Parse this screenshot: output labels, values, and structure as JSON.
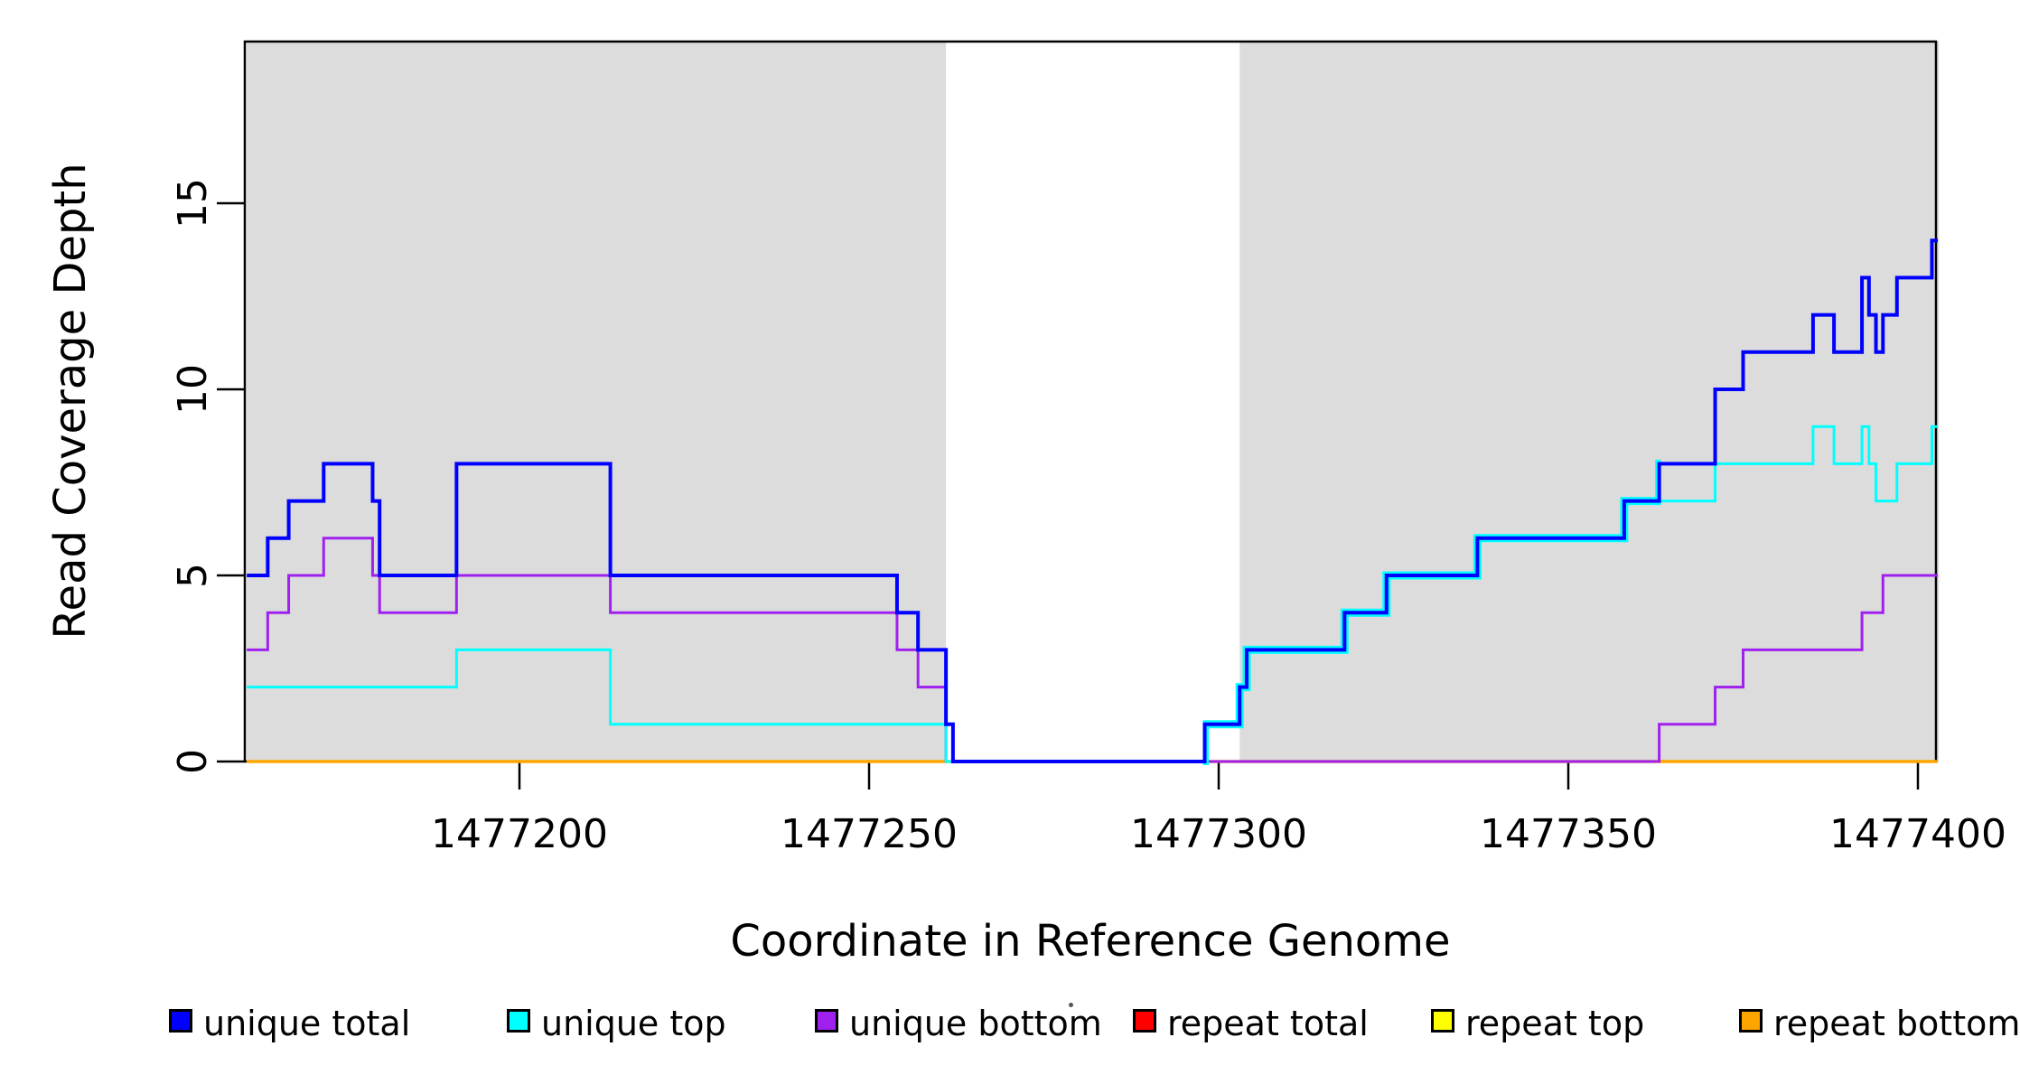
{
  "chart_data": {
    "type": "line",
    "subtype": "step-coverage-plot",
    "title": "",
    "xlabel": "Coordinate in Reference Genome",
    "ylabel": "Read Coverage Depth",
    "xlim": [
      1477161,
      1477403
    ],
    "ylim": [
      0,
      19.35
    ],
    "x_ticks": [
      1477200,
      1477250,
      1477300,
      1477350,
      1477400
    ],
    "x_tick_labels": [
      "1477200",
      "1477250",
      "1477300",
      "1477350",
      "1477400"
    ],
    "y_ticks": [
      0,
      5,
      10,
      15
    ],
    "y_tick_labels": [
      "0",
      "5",
      "10",
      "15"
    ],
    "grid": false,
    "background_color": "#FFFFFF",
    "axis_color": "#000000",
    "shade_color": "#DCDCDC",
    "shaded_regions": [
      [
        1477161,
        1477261
      ],
      [
        1477303,
        1477403
      ]
    ],
    "x_end": 1477403,
    "legend_position": "bottom",
    "series": [
      {
        "name": "repeat total",
        "color": "#FF0000",
        "width": 3,
        "steps": [
          [
            1477161,
            0
          ]
        ]
      },
      {
        "name": "repeat top",
        "color": "#FFFF00",
        "width": 3,
        "steps": [
          [
            1477161,
            0
          ]
        ]
      },
      {
        "name": "repeat bottom",
        "color": "#FFA500",
        "width": 3.5,
        "steps": [
          [
            1477161,
            0
          ]
        ]
      },
      {
        "name": "unique bottom",
        "color": "#A020F0",
        "width": 3,
        "steps": [
          [
            1477161,
            3
          ],
          [
            1477164,
            4
          ],
          [
            1477167,
            5
          ],
          [
            1477172,
            6
          ],
          [
            1477179,
            5
          ],
          [
            1477180,
            4
          ],
          [
            1477191,
            5
          ],
          [
            1477213,
            4
          ],
          [
            1477254,
            3
          ],
          [
            1477257,
            2
          ],
          [
            1477261,
            0
          ],
          [
            1477363,
            1
          ],
          [
            1477371,
            2
          ],
          [
            1477375,
            3
          ],
          [
            1477392,
            4
          ],
          [
            1477395,
            5
          ]
        ]
      },
      {
        "name": "unique top",
        "color": "#00FFFF",
        "width": 3,
        "steps": [
          [
            1477161,
            2
          ],
          [
            1477191,
            3
          ],
          [
            1477213,
            1
          ],
          [
            1477261,
            0
          ],
          [
            1477298,
            1
          ],
          [
            1477303,
            2
          ],
          [
            1477304,
            3
          ],
          [
            1477318,
            4
          ],
          [
            1477324,
            5
          ],
          [
            1477337,
            6
          ],
          [
            1477358,
            7
          ],
          [
            1477371,
            8
          ],
          [
            1477385,
            9
          ],
          [
            1477388,
            8
          ],
          [
            1477392,
            9
          ],
          [
            1477393,
            8
          ],
          [
            1477394,
            7
          ],
          [
            1477397,
            8
          ],
          [
            1477402,
            9
          ]
        ]
      },
      {
        "name": "unique total",
        "color": "#0000FF",
        "width": 4,
        "halo": {
          "color": "#00FFFF",
          "width": 9,
          "range": [
            1477298,
            1477363
          ]
        },
        "steps": [
          [
            1477161,
            5
          ],
          [
            1477164,
            6
          ],
          [
            1477167,
            7
          ],
          [
            1477172,
            8
          ],
          [
            1477179,
            7
          ],
          [
            1477180,
            5
          ],
          [
            1477191,
            8
          ],
          [
            1477213,
            5
          ],
          [
            1477254,
            4
          ],
          [
            1477257,
            3
          ],
          [
            1477261,
            1
          ],
          [
            1477262,
            0
          ],
          [
            1477298,
            1
          ],
          [
            1477303,
            2
          ],
          [
            1477304,
            3
          ],
          [
            1477318,
            4
          ],
          [
            1477324,
            5
          ],
          [
            1477337,
            6
          ],
          [
            1477358,
            7
          ],
          [
            1477363,
            8
          ],
          [
            1477371,
            10
          ],
          [
            1477375,
            11
          ],
          [
            1477385,
            12
          ],
          [
            1477388,
            11
          ],
          [
            1477392,
            13
          ],
          [
            1477393,
            12
          ],
          [
            1477394,
            11
          ],
          [
            1477395,
            12
          ],
          [
            1477397,
            13
          ],
          [
            1477402,
            14
          ]
        ]
      }
    ]
  },
  "legend": {
    "items": [
      {
        "label": "unique total",
        "color": "#0000FF",
        "x": 187
      },
      {
        "label": "unique top",
        "color": "#00FFFF",
        "x": 561
      },
      {
        "label": "unique bottom",
        "color": "#A020F0",
        "x": 902
      },
      {
        "label": "repeat total",
        "color": "#FF0000",
        "x": 1254
      },
      {
        "label": "repeat top",
        "color": "#FFFF00",
        "x": 1584
      },
      {
        "label": "repeat bottom",
        "color": "#FFA500",
        "x": 1925
      }
    ]
  }
}
